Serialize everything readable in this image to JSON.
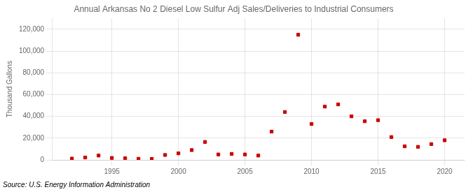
{
  "chart_data": {
    "type": "scatter",
    "title": "Annual Arkansas No 2 Diesel Low Sulfur Adj Sales/Deliveries to Industrial Consumers",
    "ylabel": "Thousand Gallons",
    "source": "Source: U.S. Energy Information Administration",
    "x": [
      1992,
      1993,
      1994,
      1995,
      1996,
      1997,
      1998,
      1999,
      2000,
      2001,
      2002,
      2003,
      2004,
      2005,
      2006,
      2007,
      2008,
      2009,
      2010,
      2011,
      2012,
      2013,
      2014,
      2015,
      2016,
      2017,
      2018,
      2019,
      2020
    ],
    "values": [
      1200,
      2200,
      4000,
      1800,
      1500,
      1000,
      900,
      4500,
      6000,
      9000,
      16500,
      5000,
      5500,
      5000,
      4000,
      26000,
      44000,
      115000,
      33000,
      49000,
      51000,
      40000,
      35500,
      36500,
      21000,
      12500,
      12000,
      14500,
      18000
    ],
    "color": "#cc0000",
    "marker": "square",
    "xlim": [
      1990.5,
      2021.5
    ],
    "xticks": [
      1995,
      2000,
      2005,
      2010,
      2015,
      2020
    ],
    "ylim": [
      0,
      130000
    ],
    "yticks": [
      0,
      {
        "value": 20000,
        "label": "20,000"
      },
      {
        "value": 40000,
        "label": "40,000"
      },
      {
        "value": 60000,
        "label": "60,000"
      },
      {
        "value": 80000,
        "label": "80,000"
      },
      {
        "value": 100000,
        "label": "100,000"
      },
      {
        "value": 120000,
        "label": "120,000"
      }
    ],
    "grid": true
  }
}
